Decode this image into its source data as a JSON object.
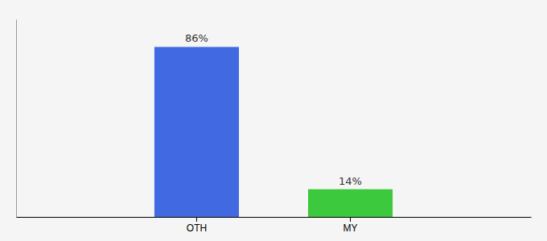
{
  "chart_data": {
    "type": "bar",
    "categories": [
      "OTH",
      "MY"
    ],
    "values": [
      86,
      14
    ],
    "value_labels": [
      "86%",
      "14%"
    ],
    "data_labels": true,
    "colors": [
      "#4169e1",
      "#3dc93d"
    ],
    "ylim": [
      0,
      100
    ],
    "tick_labels": "x"
  }
}
